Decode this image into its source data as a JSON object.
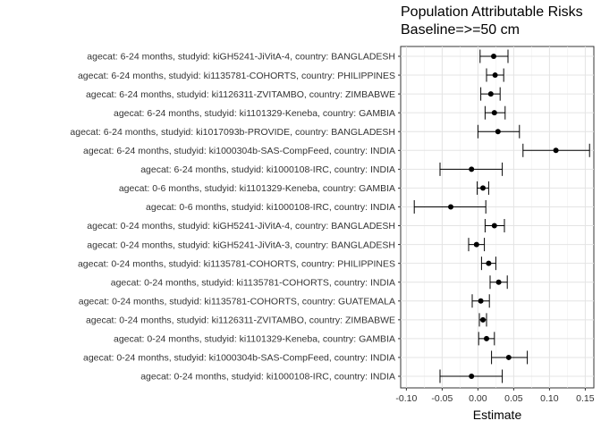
{
  "chart_data": {
    "type": "scatter",
    "title": "Population Attributable Risks",
    "subtitle": "Baseline=>=50 cm",
    "xlabel": "Estimate",
    "ylabel": "",
    "xlim": [
      -0.108,
      0.162
    ],
    "xticks": [
      -0.1,
      -0.05,
      0.0,
      0.05,
      0.1,
      0.15
    ],
    "xtick_labels": [
      "-0.10",
      "-0.05",
      "0.00",
      "0.05",
      "0.10",
      "0.15"
    ],
    "grid": true,
    "rows": [
      {
        "label": "agecat: 6-24 months, studyid: kiGH5241-JiVitA-4, country: BANGLADESH",
        "estimate": 0.022,
        "lower": 0.003,
        "upper": 0.042
      },
      {
        "label": "agecat: 6-24 months, studyid: ki1135781-COHORTS, country: PHILIPPINES",
        "estimate": 0.024,
        "lower": 0.012,
        "upper": 0.036
      },
      {
        "label": "agecat: 6-24 months, studyid: ki1126311-ZVITAMBO, country: ZIMBABWE",
        "estimate": 0.018,
        "lower": 0.004,
        "upper": 0.031
      },
      {
        "label": "agecat: 6-24 months, studyid: ki1101329-Keneba, country: GAMBIA",
        "estimate": 0.023,
        "lower": 0.01,
        "upper": 0.038
      },
      {
        "label": "agecat: 6-24 months, studyid: ki1017093b-PROVIDE, country: BANGLADESH",
        "estimate": 0.028,
        "lower": 0.0,
        "upper": 0.058
      },
      {
        "label": "agecat: 6-24 months, studyid: ki1000304b-SAS-CompFeed, country: INDIA",
        "estimate": 0.109,
        "lower": 0.063,
        "upper": 0.156
      },
      {
        "label": "agecat: 6-24 months, studyid: ki1000108-IRC, country: INDIA",
        "estimate": -0.009,
        "lower": -0.053,
        "upper": 0.034
      },
      {
        "label": "agecat: 0-6 months, studyid: ki1101329-Keneba, country: GAMBIA",
        "estimate": 0.007,
        "lower": -0.001,
        "upper": 0.015
      },
      {
        "label": "agecat: 0-6 months, studyid: ki1000108-IRC, country: INDIA",
        "estimate": -0.038,
        "lower": -0.089,
        "upper": 0.011
      },
      {
        "label": "agecat: 0-24 months, studyid: kiGH5241-JiVitA-4, country: BANGLADESH",
        "estimate": 0.023,
        "lower": 0.01,
        "upper": 0.037
      },
      {
        "label": "agecat: 0-24 months, studyid: kiGH5241-JiVitA-3, country: BANGLADESH",
        "estimate": -0.002,
        "lower": -0.013,
        "upper": 0.009
      },
      {
        "label": "agecat: 0-24 months, studyid: ki1135781-COHORTS, country: PHILIPPINES",
        "estimate": 0.015,
        "lower": 0.005,
        "upper": 0.025
      },
      {
        "label": "agecat: 0-24 months, studyid: ki1135781-COHORTS, country: INDIA",
        "estimate": 0.029,
        "lower": 0.017,
        "upper": 0.041
      },
      {
        "label": "agecat: 0-24 months, studyid: ki1135781-COHORTS, country: GUATEMALA",
        "estimate": 0.004,
        "lower": -0.008,
        "upper": 0.016
      },
      {
        "label": "agecat: 0-24 months, studyid: ki1126311-ZVITAMBO, country: ZIMBABWE",
        "estimate": 0.007,
        "lower": 0.002,
        "upper": 0.012
      },
      {
        "label": "agecat: 0-24 months, studyid: ki1101329-Keneba, country: GAMBIA",
        "estimate": 0.012,
        "lower": 0.001,
        "upper": 0.023
      },
      {
        "label": "agecat: 0-24 months, studyid: ki1000304b-SAS-CompFeed, country: INDIA",
        "estimate": 0.043,
        "lower": 0.019,
        "upper": 0.069
      },
      {
        "label": "agecat: 0-24 months, studyid: ki1000108-IRC, country: INDIA",
        "estimate": -0.009,
        "lower": -0.053,
        "upper": 0.034
      }
    ]
  }
}
